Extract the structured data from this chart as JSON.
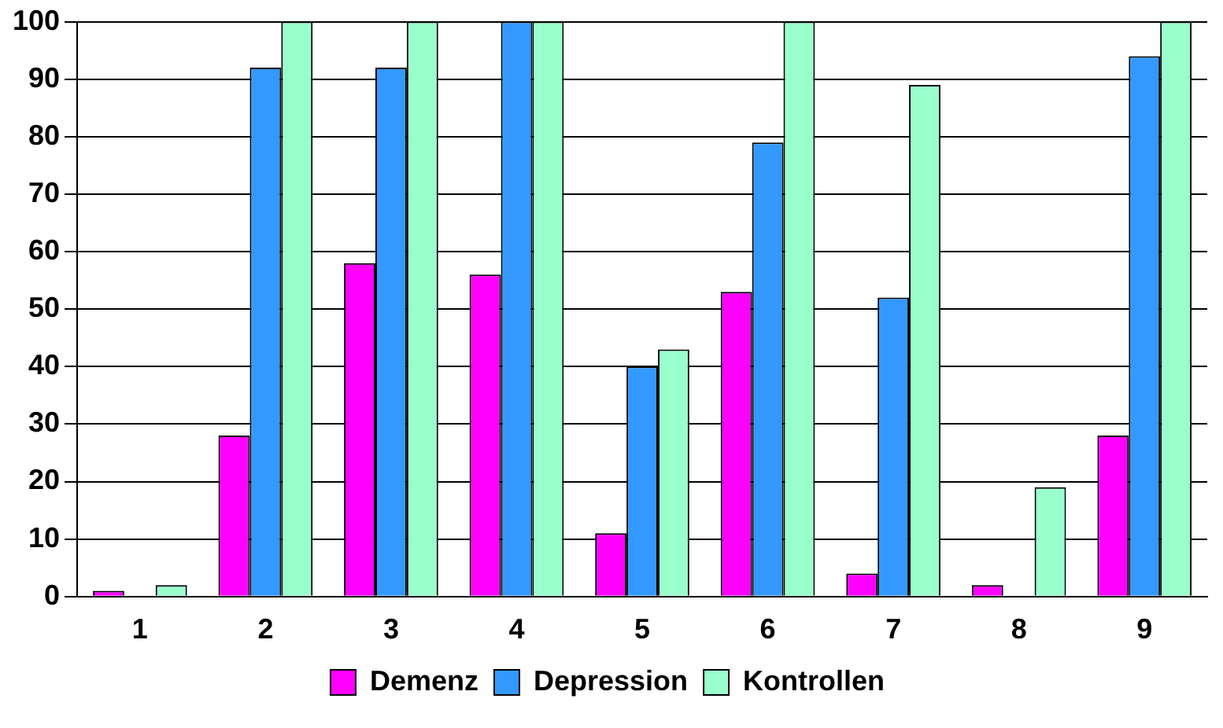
{
  "chart_data": {
    "type": "bar",
    "categories": [
      "1",
      "2",
      "3",
      "4",
      "5",
      "6",
      "7",
      "8",
      "9"
    ],
    "series": [
      {
        "name": "Demenz",
        "color": "#ff00ff",
        "values": [
          1,
          28,
          58,
          56,
          11,
          53,
          4,
          2,
          28
        ]
      },
      {
        "name": "Depression",
        "color": "#3399ff",
        "values": [
          0,
          92,
          92,
          100,
          40,
          79,
          52,
          0,
          94
        ]
      },
      {
        "name": "Kontrollen",
        "color": "#99ffcc",
        "values": [
          2,
          100,
          100,
          100,
          43,
          100,
          89,
          19,
          100
        ]
      }
    ],
    "ylim": [
      0,
      100
    ],
    "yticks": [
      0,
      10,
      20,
      30,
      40,
      50,
      60,
      70,
      80,
      90,
      100
    ],
    "grid": "y",
    "legend": "bottom"
  }
}
